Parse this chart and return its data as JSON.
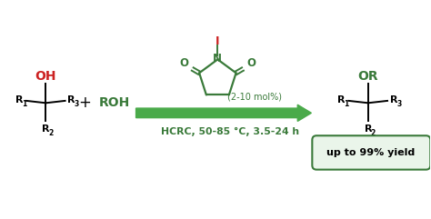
{
  "bg_color": "#ffffff",
  "green_color": "#3a7a3a",
  "dark_green": "#2d6a2d",
  "red_color": "#cc2222",
  "arrow_color": "#4aaa4a",
  "fig_width": 4.74,
  "fig_height": 2.41,
  "dpi": 100,
  "conditions_bottom": "HCRC, 50-85 °C, 3.5-24 h",
  "conditions_top": "(2-10 mol%)",
  "yield_text": "up to 99% yield"
}
